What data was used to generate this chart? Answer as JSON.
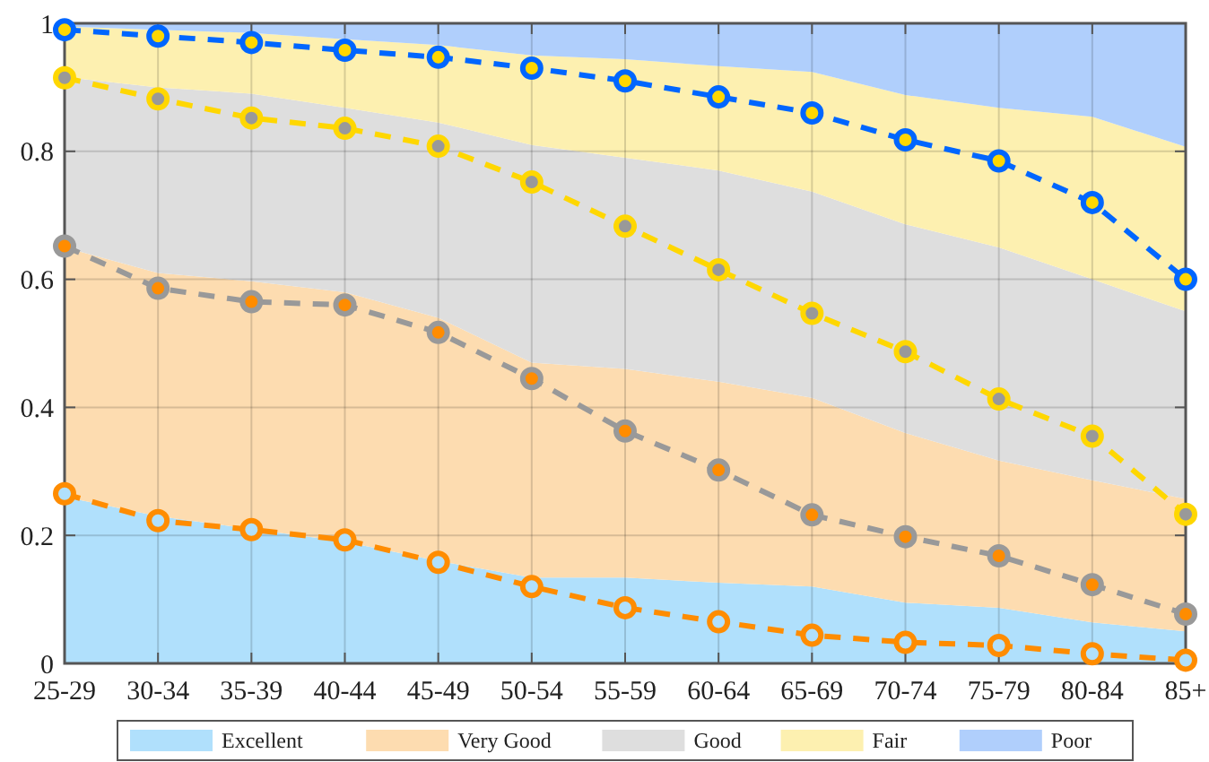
{
  "chart_data": {
    "type": "area",
    "stacked": true,
    "categories": [
      "25-29",
      "30-34",
      "35-39",
      "40-44",
      "45-49",
      "50-54",
      "55-59",
      "60-64",
      "65-69",
      "70-74",
      "75-79",
      "80-84",
      "85+"
    ],
    "ylim": [
      0,
      1
    ],
    "yticks": [
      0,
      0.2,
      0.4,
      0.6,
      0.8,
      1
    ],
    "grid": true,
    "legend": "bottom",
    "series": [
      {
        "name": "Excellent",
        "color": "#b0e0fc",
        "values": [
          0.26,
          0.23,
          0.21,
          0.19,
          0.16,
          0.134,
          0.134,
          0.126,
          0.12,
          0.095,
          0.087,
          0.064,
          0.05
        ]
      },
      {
        "name": "Very Good",
        "color": "#fddcb0",
        "values": [
          0.39,
          0.38,
          0.387,
          0.39,
          0.38,
          0.336,
          0.326,
          0.314,
          0.295,
          0.265,
          0.23,
          0.222,
          0.207
        ]
      },
      {
        "name": "Good",
        "color": "#dedede",
        "values": [
          0.266,
          0.29,
          0.293,
          0.288,
          0.305,
          0.34,
          0.33,
          0.33,
          0.322,
          0.326,
          0.333,
          0.314,
          0.293
        ]
      },
      {
        "name": "Fair",
        "color": "#fdf0b0",
        "values": [
          0.079,
          0.09,
          0.095,
          0.107,
          0.121,
          0.14,
          0.154,
          0.163,
          0.187,
          0.202,
          0.218,
          0.254,
          0.257
        ]
      },
      {
        "name": "Poor",
        "color": "#b0cffc",
        "values": [
          0.005,
          0.01,
          0.015,
          0.025,
          0.034,
          0.05,
          0.056,
          0.067,
          0.076,
          0.112,
          0.132,
          0.146,
          0.193
        ]
      },
      {
        "type": "line",
        "line_style": "dashed",
        "marker": "circle",
        "color": "#0066ff",
        "values": [
          0.99,
          0.98,
          0.97,
          0.958,
          0.947,
          0.93,
          0.91,
          0.885,
          0.86,
          0.818,
          0.785,
          0.72,
          0.6
        ]
      },
      {
        "type": "line",
        "line_style": "dashed",
        "marker": "circle",
        "color": "#ffd700",
        "values": [
          0.915,
          0.882,
          0.852,
          0.836,
          0.808,
          0.752,
          0.683,
          0.615,
          0.547,
          0.487,
          0.413,
          0.355,
          0.233
        ]
      },
      {
        "type": "line",
        "line_style": "dashed",
        "marker": "circle",
        "color": "#999999",
        "values": [
          0.652,
          0.586,
          0.565,
          0.56,
          0.517,
          0.445,
          0.363,
          0.302,
          0.232,
          0.198,
          0.168,
          0.123,
          0.077
        ]
      },
      {
        "type": "line",
        "line_style": "dashed",
        "marker": "circle",
        "color": "#ff8c00",
        "values": [
          0.265,
          0.223,
          0.209,
          0.193,
          0.158,
          0.12,
          0.087,
          0.065,
          0.044,
          0.033,
          0.028,
          0.015,
          0.005
        ]
      }
    ]
  }
}
